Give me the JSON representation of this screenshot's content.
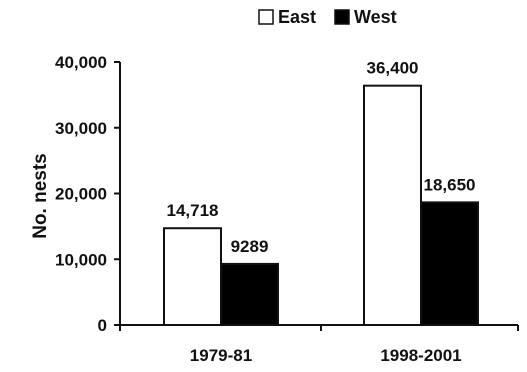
{
  "chart_data": {
    "type": "bar",
    "categories": [
      "1979-81",
      "1998-2001"
    ],
    "series": [
      {
        "name": "East",
        "values": [
          14718,
          36400
        ],
        "labels": [
          "14,718",
          "36,400"
        ],
        "color": "#ffffff"
      },
      {
        "name": "West",
        "values": [
          9289,
          18650
        ],
        "labels": [
          "9289",
          "18,650"
        ],
        "color": "#000000"
      }
    ],
    "ylabel": "No. nests",
    "xlabel": "",
    "ylim": [
      0,
      40000
    ],
    "yticks": [
      0,
      10000,
      20000,
      30000,
      40000
    ],
    "ytick_labels": [
      "0",
      "10,000",
      "20,000",
      "30,000",
      "40,000"
    ],
    "grid": false,
    "legend_position": "top-right"
  }
}
